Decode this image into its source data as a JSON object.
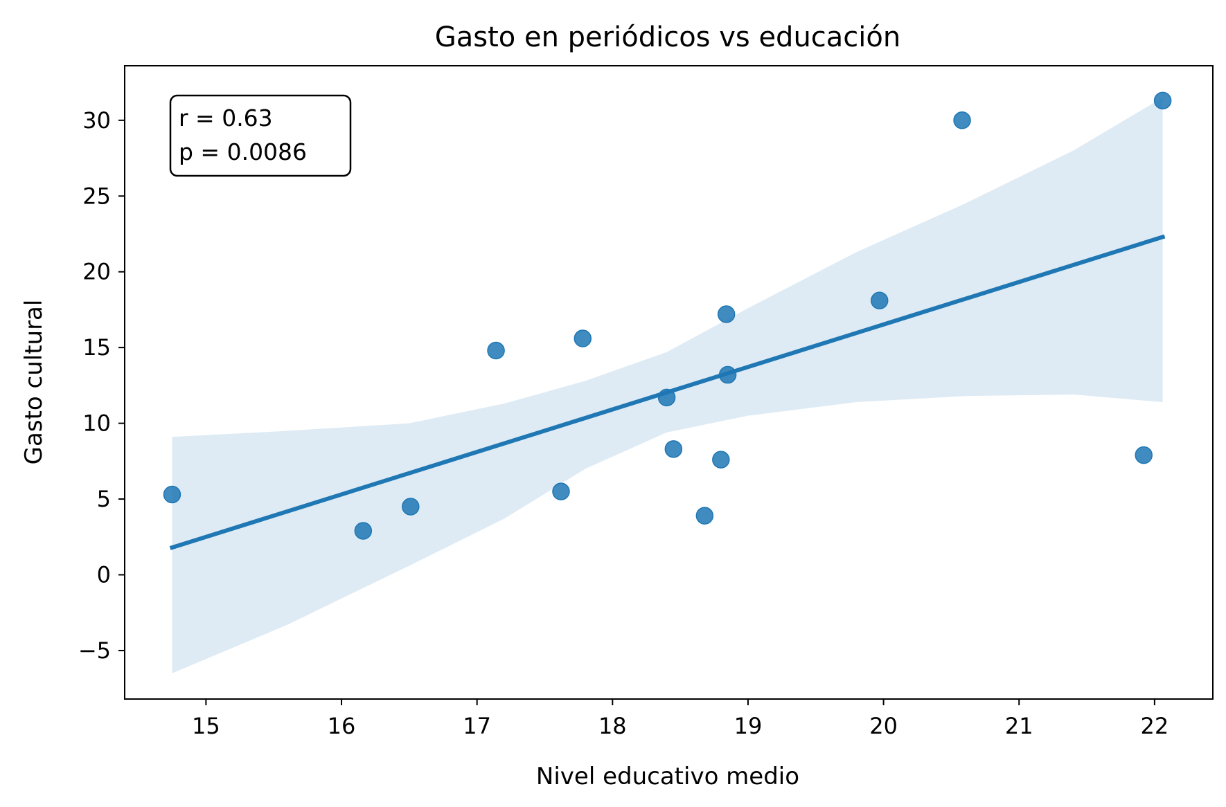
{
  "chart_data": {
    "type": "scatter",
    "title": "Gasto en periódicos vs educación",
    "xlabel": "Nivel educativo medio",
    "ylabel": "Gasto cultural",
    "xlim": [
      14.4,
      22.43
    ],
    "ylim": [
      -8.2,
      33.6
    ],
    "xticks": [
      15,
      16,
      17,
      18,
      19,
      20,
      21,
      22
    ],
    "yticks": [
      -5,
      0,
      5,
      10,
      15,
      20,
      25,
      30
    ],
    "grid": false,
    "points": [
      {
        "x": 14.75,
        "y": 5.3
      },
      {
        "x": 16.16,
        "y": 2.9
      },
      {
        "x": 16.51,
        "y": 4.5
      },
      {
        "x": 17.14,
        "y": 14.8
      },
      {
        "x": 17.62,
        "y": 5.5
      },
      {
        "x": 17.78,
        "y": 15.6
      },
      {
        "x": 18.4,
        "y": 11.7
      },
      {
        "x": 18.45,
        "y": 8.3
      },
      {
        "x": 18.68,
        "y": 3.9
      },
      {
        "x": 18.8,
        "y": 7.6
      },
      {
        "x": 18.84,
        "y": 17.2
      },
      {
        "x": 18.85,
        "y": 13.2
      },
      {
        "x": 19.97,
        "y": 18.1
      },
      {
        "x": 20.58,
        "y": 30.0
      },
      {
        "x": 21.92,
        "y": 7.9
      },
      {
        "x": 22.06,
        "y": 31.3
      }
    ],
    "regression_line": {
      "x": [
        14.75,
        22.06
      ],
      "y": [
        1.8,
        22.3
      ]
    },
    "confidence_band": [
      {
        "x": 14.75,
        "lower": -6.5,
        "upper": 9.1
      },
      {
        "x": 15.6,
        "lower": -3.3,
        "upper": 9.5
      },
      {
        "x": 16.5,
        "lower": 0.6,
        "upper": 10.0
      },
      {
        "x": 17.2,
        "lower": 3.7,
        "upper": 11.3
      },
      {
        "x": 17.8,
        "lower": 7.0,
        "upper": 12.8
      },
      {
        "x": 18.4,
        "lower": 9.4,
        "upper": 14.7
      },
      {
        "x": 19.0,
        "lower": 10.5,
        "upper": 17.6
      },
      {
        "x": 19.8,
        "lower": 11.4,
        "upper": 21.3
      },
      {
        "x": 20.6,
        "lower": 11.8,
        "upper": 24.5
      },
      {
        "x": 21.4,
        "lower": 11.9,
        "upper": 28.0
      },
      {
        "x": 22.06,
        "lower": 11.4,
        "upper": 31.5
      }
    ],
    "colors": {
      "points": "#1f77b4",
      "line": "#1f77b4",
      "band": "#1f77b4"
    },
    "stats_box": {
      "placement": "top-left",
      "r_text": "r = 0.63",
      "p_text": "p = 0.0086"
    }
  }
}
